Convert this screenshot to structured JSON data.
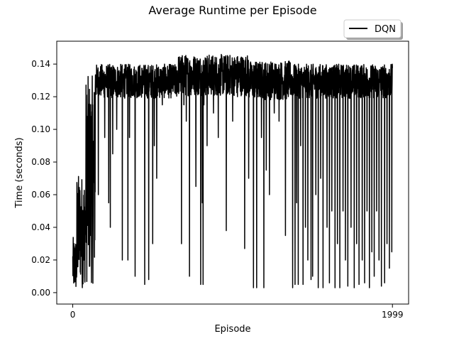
{
  "chart_data": {
    "type": "line",
    "title": "Average Runtime per Episode",
    "xlabel": "Episode",
    "ylabel": "Time (seconds)",
    "xlim": [
      -100,
      2100
    ],
    "ylim": [
      -0.007,
      0.154
    ],
    "x_ticks": [
      0,
      1999
    ],
    "x_tick_labels": [
      "0",
      "1999"
    ],
    "y_ticks": [
      0.0,
      0.02,
      0.04,
      0.06,
      0.08,
      0.1,
      0.12,
      0.14
    ],
    "y_tick_labels": [
      "0.00",
      "0.02",
      "0.04",
      "0.06",
      "0.08",
      "0.10",
      "0.12",
      "0.14"
    ],
    "grid": false,
    "legend_position": "upper-right-outside",
    "series": [
      {
        "name": "DQN",
        "color": "#000000",
        "x_start": 0,
        "x_end": 1999,
        "segments": [
          {
            "start": 0,
            "end": 25,
            "min": 0.0,
            "max": 0.034
          },
          {
            "start": 25,
            "end": 80,
            "min": 0.005,
            "max": 0.073
          },
          {
            "start": 80,
            "end": 140,
            "min": 0.005,
            "max": 0.133
          },
          {
            "start": 140,
            "end": 650,
            "min": 0.112,
            "max": 0.14
          },
          {
            "start": 650,
            "end": 1100,
            "min": 0.112,
            "max": 0.146
          },
          {
            "start": 1100,
            "end": 1360,
            "min": 0.11,
            "max": 0.142
          },
          {
            "start": 1360,
            "end": 1999,
            "min": 0.112,
            "max": 0.14
          }
        ],
        "dips": [
          {
            "x": 60,
            "y": 0.003
          },
          {
            "x": 75,
            "y": 0.01
          },
          {
            "x": 110,
            "y": 0.035
          },
          {
            "x": 160,
            "y": 0.06
          },
          {
            "x": 200,
            "y": 0.095
          },
          {
            "x": 225,
            "y": 0.055
          },
          {
            "x": 235,
            "y": 0.04
          },
          {
            "x": 250,
            "y": 0.085
          },
          {
            "x": 275,
            "y": 0.1
          },
          {
            "x": 310,
            "y": 0.02
          },
          {
            "x": 345,
            "y": 0.02
          },
          {
            "x": 355,
            "y": 0.095
          },
          {
            "x": 390,
            "y": 0.01
          },
          {
            "x": 450,
            "y": 0.115
          },
          {
            "x": 450,
            "y": 0.005
          },
          {
            "x": 475,
            "y": 0.008
          },
          {
            "x": 500,
            "y": 0.03
          },
          {
            "x": 510,
            "y": 0.09
          },
          {
            "x": 525,
            "y": 0.07
          },
          {
            "x": 560,
            "y": 0.115
          },
          {
            "x": 680,
            "y": 0.03
          },
          {
            "x": 695,
            "y": 0.115
          },
          {
            "x": 710,
            "y": 0.105
          },
          {
            "x": 730,
            "y": 0.01
          },
          {
            "x": 770,
            "y": 0.065
          },
          {
            "x": 800,
            "y": 0.005
          },
          {
            "x": 810,
            "y": 0.055
          },
          {
            "x": 815,
            "y": 0.005
          },
          {
            "x": 820,
            "y": 0.115
          },
          {
            "x": 840,
            "y": 0.09
          },
          {
            "x": 880,
            "y": 0.11
          },
          {
            "x": 910,
            "y": 0.095
          },
          {
            "x": 960,
            "y": 0.038
          },
          {
            "x": 1000,
            "y": 0.105
          },
          {
            "x": 1030,
            "y": 0.12
          },
          {
            "x": 1075,
            "y": 0.027
          },
          {
            "x": 1100,
            "y": 0.07
          },
          {
            "x": 1130,
            "y": 0.003
          },
          {
            "x": 1150,
            "y": 0.003
          },
          {
            "x": 1180,
            "y": 0.095
          },
          {
            "x": 1195,
            "y": 0.003
          },
          {
            "x": 1210,
            "y": 0.075
          },
          {
            "x": 1230,
            "y": 0.06
          },
          {
            "x": 1260,
            "y": 0.11
          },
          {
            "x": 1290,
            "y": 0.105
          },
          {
            "x": 1330,
            "y": 0.035
          },
          {
            "x": 1375,
            "y": 0.003
          },
          {
            "x": 1390,
            "y": 0.005
          },
          {
            "x": 1400,
            "y": 0.055
          },
          {
            "x": 1410,
            "y": 0.005
          },
          {
            "x": 1425,
            "y": 0.09
          },
          {
            "x": 1440,
            "y": 0.005
          },
          {
            "x": 1455,
            "y": 0.04
          },
          {
            "x": 1470,
            "y": 0.02
          },
          {
            "x": 1490,
            "y": 0.008
          },
          {
            "x": 1500,
            "y": 0.01
          },
          {
            "x": 1520,
            "y": 0.06
          },
          {
            "x": 1535,
            "y": 0.003
          },
          {
            "x": 1550,
            "y": 0.07
          },
          {
            "x": 1565,
            "y": 0.003
          },
          {
            "x": 1590,
            "y": 0.04
          },
          {
            "x": 1605,
            "y": 0.006
          },
          {
            "x": 1620,
            "y": 0.05
          },
          {
            "x": 1640,
            "y": 0.003
          },
          {
            "x": 1655,
            "y": 0.03
          },
          {
            "x": 1670,
            "y": 0.003
          },
          {
            "x": 1690,
            "y": 0.05
          },
          {
            "x": 1705,
            "y": 0.02
          },
          {
            "x": 1720,
            "y": 0.004
          },
          {
            "x": 1740,
            "y": 0.04
          },
          {
            "x": 1760,
            "y": 0.003
          },
          {
            "x": 1775,
            "y": 0.03
          },
          {
            "x": 1790,
            "y": 0.005
          },
          {
            "x": 1810,
            "y": 0.02
          },
          {
            "x": 1825,
            "y": 0.006
          },
          {
            "x": 1840,
            "y": 0.05
          },
          {
            "x": 1855,
            "y": 0.003
          },
          {
            "x": 1870,
            "y": 0.025
          },
          {
            "x": 1885,
            "y": 0.01
          },
          {
            "x": 1900,
            "y": 0.05
          },
          {
            "x": 1915,
            "y": 0.02
          },
          {
            "x": 1930,
            "y": 0.004
          },
          {
            "x": 1950,
            "y": 0.006
          },
          {
            "x": 1965,
            "y": 0.03
          },
          {
            "x": 1980,
            "y": 0.015
          },
          {
            "x": 1995,
            "y": 0.025
          }
        ]
      }
    ]
  }
}
